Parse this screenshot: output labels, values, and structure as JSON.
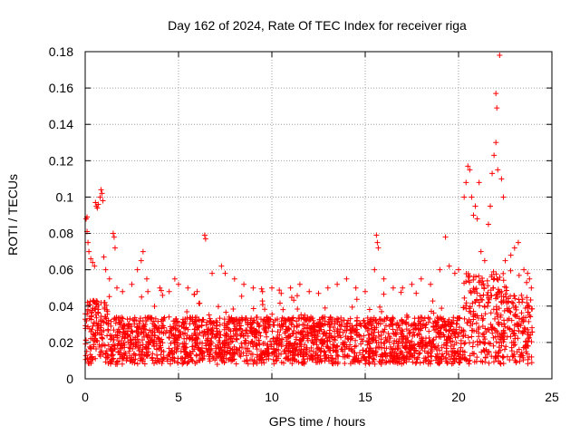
{
  "chart_data": {
    "type": "scatter",
    "title": "Day 162 of 2024, Rate Of TEC Index for receiver riga",
    "xlabel": "GPS time / hours",
    "ylabel": "ROTI / TECUs",
    "xlim": [
      0,
      25
    ],
    "ylim": [
      0,
      0.18
    ],
    "xticks": [
      0,
      5,
      10,
      15,
      20,
      25
    ],
    "yticks": [
      0,
      0.02,
      0.04,
      0.06,
      0.08,
      0.1,
      0.12,
      0.14,
      0.16,
      0.18
    ],
    "xtick_labels": [
      "0",
      "5",
      "10",
      "15",
      "20",
      "25"
    ],
    "ytick_labels": [
      "0",
      "0.02",
      "0.04",
      "0.06",
      "0.08",
      "0.1",
      "0.12",
      "0.14",
      "0.16",
      "0.18"
    ],
    "grid": true,
    "marker": "+",
    "color": "#ff0000",
    "series": [
      {
        "points": [
          [
            0.05,
            0.088
          ],
          [
            0.1,
            0.081
          ],
          [
            0.1,
            0.089
          ],
          [
            0.15,
            0.075
          ],
          [
            0.2,
            0.07
          ],
          [
            0.3,
            0.066
          ],
          [
            0.4,
            0.064
          ],
          [
            0.5,
            0.062
          ],
          [
            0.55,
            0.097
          ],
          [
            0.6,
            0.095
          ],
          [
            0.65,
            0.094
          ],
          [
            0.7,
            0.096
          ],
          [
            0.8,
            0.1
          ],
          [
            0.85,
            0.104
          ],
          [
            0.9,
            0.102
          ],
          [
            0.95,
            0.098
          ],
          [
            1.0,
            0.067
          ],
          [
            1.1,
            0.06
          ],
          [
            1.3,
            0.055
          ],
          [
            1.5,
            0.08
          ],
          [
            1.55,
            0.078
          ],
          [
            1.6,
            0.072
          ],
          [
            1.7,
            0.05
          ],
          [
            2.0,
            0.048
          ],
          [
            2.5,
            0.052
          ],
          [
            2.8,
            0.06
          ],
          [
            3.0,
            0.065
          ],
          [
            3.1,
            0.07
          ],
          [
            3.3,
            0.055
          ],
          [
            4.0,
            0.05
          ],
          [
            4.5,
            0.048
          ],
          [
            4.8,
            0.055
          ],
          [
            5.0,
            0.052
          ],
          [
            5.5,
            0.05
          ],
          [
            6.0,
            0.048
          ],
          [
            6.4,
            0.079
          ],
          [
            6.45,
            0.077
          ],
          [
            6.8,
            0.058
          ],
          [
            7.3,
            0.062
          ],
          [
            7.5,
            0.058
          ],
          [
            8.0,
            0.055
          ],
          [
            8.5,
            0.052
          ],
          [
            9.0,
            0.05
          ],
          [
            9.5,
            0.048
          ],
          [
            10.0,
            0.05
          ],
          [
            10.5,
            0.047
          ],
          [
            11.0,
            0.05
          ],
          [
            11.5,
            0.052
          ],
          [
            12.0,
            0.048
          ],
          [
            12.5,
            0.047
          ],
          [
            13.0,
            0.05
          ],
          [
            13.5,
            0.052
          ],
          [
            14.0,
            0.055
          ],
          [
            14.5,
            0.05
          ],
          [
            15.0,
            0.048
          ],
          [
            15.5,
            0.06
          ],
          [
            15.6,
            0.079
          ],
          [
            15.65,
            0.075
          ],
          [
            15.7,
            0.072
          ],
          [
            16.0,
            0.055
          ],
          [
            16.5,
            0.05
          ],
          [
            17.0,
            0.05
          ],
          [
            17.5,
            0.052
          ],
          [
            18.0,
            0.055
          ],
          [
            18.5,
            0.052
          ],
          [
            19.0,
            0.06
          ],
          [
            19.3,
            0.078
          ],
          [
            19.5,
            0.062
          ],
          [
            19.8,
            0.058
          ],
          [
            20.0,
            0.06
          ],
          [
            20.3,
            0.1
          ],
          [
            20.4,
            0.108
          ],
          [
            20.5,
            0.117
          ],
          [
            20.6,
            0.115
          ],
          [
            20.7,
            0.1
          ],
          [
            20.8,
            0.09
          ],
          [
            20.9,
            0.095
          ],
          [
            21.0,
            0.088
          ],
          [
            21.1,
            0.108
          ],
          [
            21.2,
            0.07
          ],
          [
            21.4,
            0.065
          ],
          [
            21.6,
            0.085
          ],
          [
            21.7,
            0.095
          ],
          [
            21.8,
            0.113
          ],
          [
            21.9,
            0.123
          ],
          [
            22.0,
            0.13
          ],
          [
            22.0,
            0.157
          ],
          [
            22.05,
            0.149
          ],
          [
            22.1,
            0.115
          ],
          [
            22.2,
            0.178
          ],
          [
            22.3,
            0.11
          ],
          [
            22.4,
            0.1
          ],
          [
            22.5,
            0.065
          ],
          [
            22.8,
            0.068
          ],
          [
            23.0,
            0.072
          ],
          [
            23.2,
            0.075
          ],
          [
            23.5,
            0.06
          ],
          [
            23.7,
            0.058
          ],
          [
            23.8,
            0.055
          ],
          [
            23.9,
            0.05
          ]
        ]
      }
    ]
  }
}
